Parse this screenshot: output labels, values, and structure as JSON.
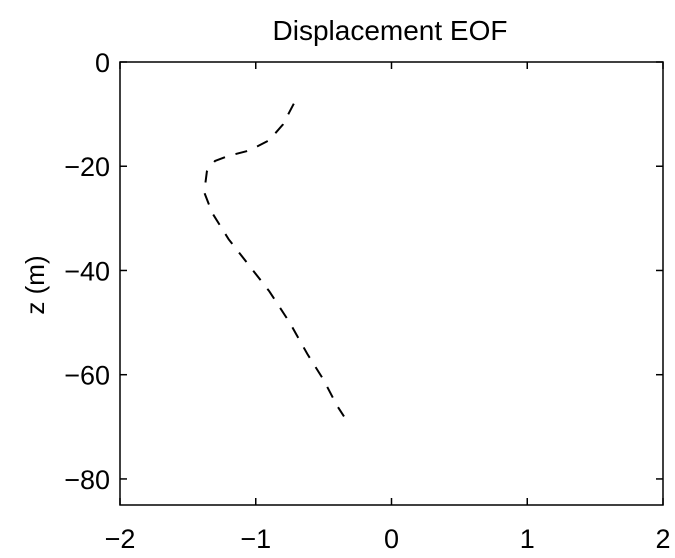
{
  "chart_data": {
    "type": "line",
    "title": "Displacement EOF",
    "xlabel": "",
    "ylabel": "z (m)",
    "xlim": [
      -2,
      2
    ],
    "ylim": [
      -85,
      0
    ],
    "xticks": [
      -2,
      -1,
      0,
      1,
      2
    ],
    "xtick_labels": [
      "−2",
      "−1",
      "0",
      "1",
      "2"
    ],
    "yticks": [
      0,
      -20,
      -40,
      -60,
      -80
    ],
    "ytick_labels": [
      "0",
      "−20",
      "−40",
      "−60",
      "−80"
    ],
    "grid": false,
    "series": [
      {
        "line_style": "dashed",
        "color": "#000000",
        "x": [
          -0.72,
          -0.8,
          -0.9,
          -1.05,
          -1.2,
          -1.3,
          -1.36,
          -1.38,
          -1.32,
          -1.2,
          -1.05,
          -0.9,
          -0.75,
          -0.62,
          -0.5,
          -0.4,
          -0.35
        ],
        "y": [
          -8,
          -12,
          -15,
          -17,
          -18,
          -19,
          -21,
          -25,
          -29,
          -34,
          -39,
          -44,
          -50,
          -56,
          -61,
          -66,
          -68
        ]
      }
    ]
  }
}
